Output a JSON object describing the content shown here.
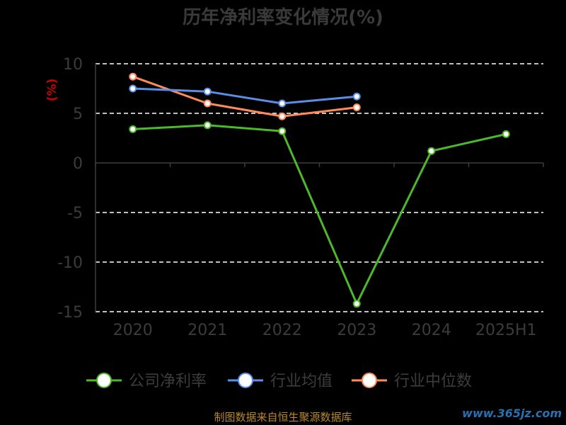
{
  "chart_data": {
    "type": "line",
    "title": "历年净利率变化情况(%)",
    "ylabel": "(%)",
    "categories": [
      "2020",
      "2021",
      "2022",
      "2023",
      "2024",
      "2025H1"
    ],
    "ylim": [
      -15,
      10
    ],
    "yticks": [
      10,
      5,
      0,
      -5,
      -10,
      -15
    ],
    "grid": true,
    "legend_position": "bottom",
    "series": [
      {
        "name": "公司净利率",
        "color": "#4db82a",
        "values": [
          3.4,
          3.8,
          3.2,
          -14.2,
          1.2,
          2.9
        ]
      },
      {
        "name": "行业均值",
        "color": "#5b8ee6",
        "values": [
          7.5,
          7.2,
          6.0,
          6.7,
          null,
          null
        ]
      },
      {
        "name": "行业中位数",
        "color": "#ff8a5c",
        "values": [
          8.7,
          6.0,
          4.7,
          5.6,
          null,
          null
        ]
      }
    ]
  },
  "source": "制图数据来自恒生聚源数据库",
  "watermark": "www.365jz.com"
}
